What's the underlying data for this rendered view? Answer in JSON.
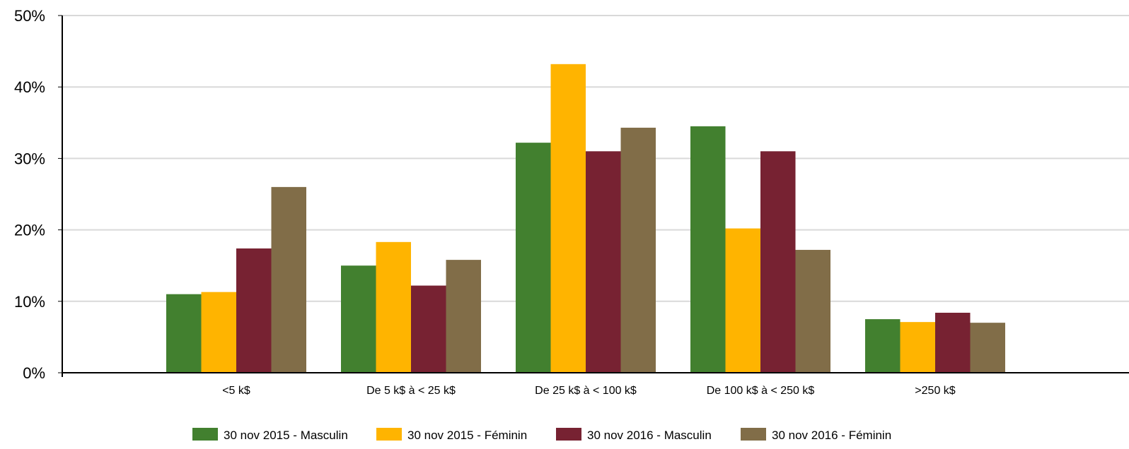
{
  "chart_data": {
    "type": "bar",
    "title": "",
    "xlabel": "",
    "ylabel": "",
    "categories": [
      "<5 k$",
      "De 5 k$ à < 25 k$",
      "De 25 k$ à < 100 k$",
      "De 100 k$ à < 250 k$",
      ">250 k$"
    ],
    "series": [
      {
        "name": "30 nov 2015 - Masculin",
        "color": "#42802f",
        "values": [
          11.0,
          15.0,
          32.2,
          34.5,
          7.5
        ]
      },
      {
        "name": "30 nov 2015 - Féminin",
        "color": "#ffb400",
        "values": [
          11.3,
          18.3,
          43.2,
          20.2,
          7.1
        ]
      },
      {
        "name": "30 nov 2016 - Masculin",
        "color": "#772232",
        "values": [
          17.4,
          12.2,
          31.0,
          31.0,
          8.4
        ]
      },
      {
        "name": "30 nov 2016 - Féminin",
        "color": "#816d48",
        "values": [
          26.0,
          15.8,
          34.3,
          17.2,
          7.0
        ]
      }
    ],
    "ylim": [
      0,
      50
    ],
    "yticks": [
      "0%",
      "10%",
      "20%",
      "30%",
      "40%",
      "50%"
    ],
    "grid": true,
    "legend_position": "bottom"
  }
}
